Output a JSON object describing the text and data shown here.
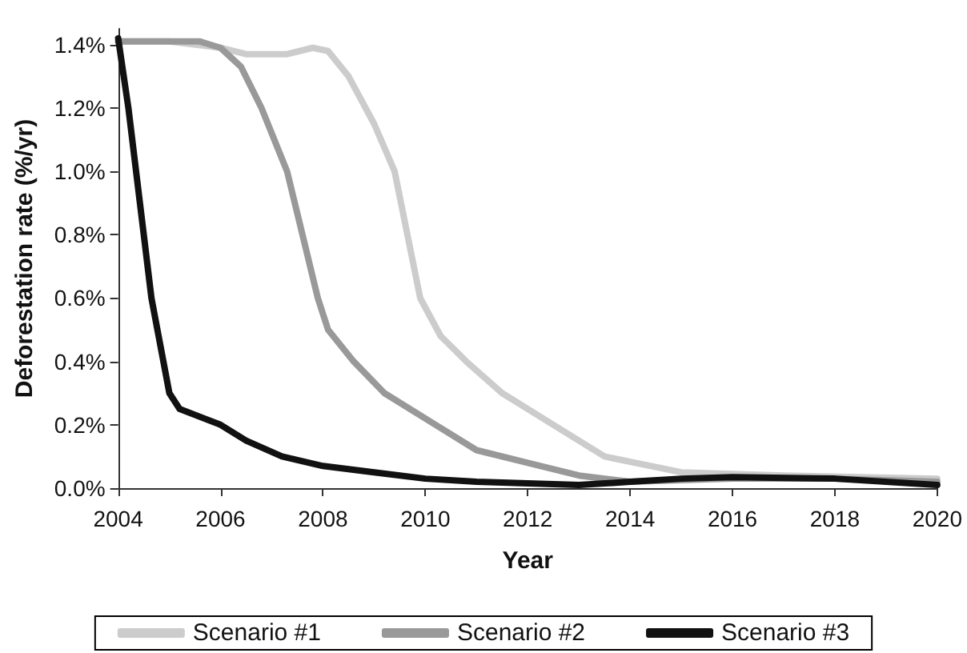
{
  "chart_data": {
    "type": "line",
    "xlabel": "Year",
    "ylabel": "Deforestation rate (%/yr)",
    "xlim": [
      2004,
      2020
    ],
    "xticks": [
      2004,
      2006,
      2008,
      2010,
      2012,
      2014,
      2016,
      2018,
      2020
    ],
    "ylim": [
      0,
      1.45
    ],
    "yticks": [
      {
        "value": 0,
        "label": "0.0%"
      },
      {
        "value": 0.2,
        "label": "0.2%"
      },
      {
        "value": 0.4,
        "label": "0.4%"
      },
      {
        "value": 0.6,
        "label": "0.6%"
      },
      {
        "value": 0.8,
        "label": "0.8%"
      },
      {
        "value": 1.0,
        "label": "1.0%"
      },
      {
        "value": 1.2,
        "label": "1.2%"
      },
      {
        "value": 1.4,
        "label": "1.4%"
      }
    ],
    "grid": false,
    "legend": "bottom",
    "marker": "none",
    "line_style": "solid",
    "series": [
      {
        "name": "Scenario #1",
        "color": "#cccccc",
        "x": [
          2004,
          2005,
          2006,
          2006.5,
          2007.3,
          2007.8,
          2008.1,
          2008.5,
          2009,
          2009.4,
          2009.9,
          2010.3,
          2010.8,
          2011.5,
          2012.5,
          2013.5,
          2015,
          2017,
          2020
        ],
        "values": [
          1.41,
          1.41,
          1.39,
          1.37,
          1.37,
          1.39,
          1.38,
          1.3,
          1.15,
          1.0,
          0.6,
          0.48,
          0.4,
          0.3,
          0.2,
          0.1,
          0.05,
          0.04,
          0.03
        ]
      },
      {
        "name": "Scenario #2",
        "color": "#999999",
        "x": [
          2004,
          2005,
          2005.6,
          2006,
          2006.4,
          2006.8,
          2007.3,
          2007.6,
          2007.9,
          2008.1,
          2008.6,
          2009.2,
          2010.2,
          2011,
          2012,
          2013,
          2014,
          2016,
          2018,
          2020
        ],
        "values": [
          1.41,
          1.41,
          1.41,
          1.39,
          1.33,
          1.2,
          1.0,
          0.8,
          0.6,
          0.5,
          0.4,
          0.3,
          0.2,
          0.12,
          0.08,
          0.04,
          0.02,
          0.03,
          0.03,
          0.02
        ]
      },
      {
        "name": "Scenario #3",
        "color": "#111111",
        "x": [
          2004,
          2004.2,
          2004.5,
          2004.65,
          2005,
          2005.2,
          2006,
          2006.5,
          2007.2,
          2008,
          2009,
          2010,
          2011,
          2012,
          2013,
          2014,
          2015,
          2016,
          2018,
          2020
        ],
        "values": [
          1.42,
          1.2,
          0.8,
          0.6,
          0.3,
          0.25,
          0.2,
          0.15,
          0.1,
          0.07,
          0.05,
          0.03,
          0.02,
          0.015,
          0.01,
          0.02,
          0.03,
          0.035,
          0.03,
          0.01
        ]
      }
    ]
  }
}
